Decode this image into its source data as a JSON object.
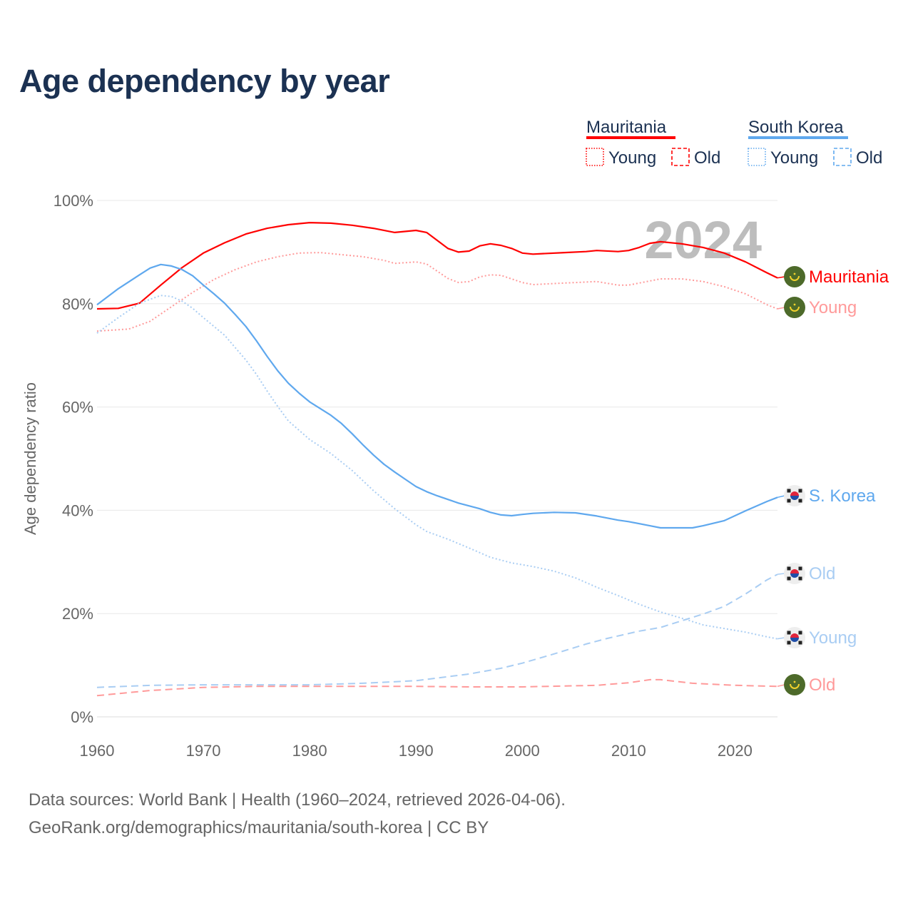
{
  "chart_data": {
    "type": "line",
    "title": "Age dependency by year",
    "xlabel": "",
    "ylabel": "Age dependency ratio",
    "xlim": [
      1960,
      2024
    ],
    "ylim": [
      0,
      100
    ],
    "x_ticks": [
      "1960",
      "1970",
      "1980",
      "1990",
      "2000",
      "2010",
      "2020"
    ],
    "y_ticks": [
      "0%",
      "20%",
      "40%",
      "60%",
      "80%",
      "100%"
    ],
    "grid": true,
    "year_watermark": "2024",
    "legend": {
      "placement": "top-right",
      "groups": [
        {
          "name": "Mauritania",
          "color": "#ff0000",
          "items": [
            "Young",
            "Old"
          ]
        },
        {
          "name": "South Korea",
          "color": "#5fa8ee",
          "items": [
            "Young",
            "Old"
          ]
        }
      ]
    },
    "series": [
      {
        "name": "Mauritania",
        "label": "Mauritania",
        "country": "mauritania",
        "color": "#ff0000",
        "style": "solid",
        "points": [
          [
            1960,
            79.0
          ],
          [
            1962,
            79.1
          ],
          [
            1964,
            80.1
          ],
          [
            1966,
            83.6
          ],
          [
            1968,
            87.0
          ],
          [
            1970,
            89.8
          ],
          [
            1972,
            91.8
          ],
          [
            1974,
            93.5
          ],
          [
            1976,
            94.6
          ],
          [
            1978,
            95.3
          ],
          [
            1980,
            95.7
          ],
          [
            1982,
            95.6
          ],
          [
            1984,
            95.2
          ],
          [
            1986,
            94.6
          ],
          [
            1988,
            93.8
          ],
          [
            1990,
            94.2
          ],
          [
            1991,
            93.8
          ],
          [
            1993,
            90.7
          ],
          [
            1994,
            90.0
          ],
          [
            1995,
            90.2
          ],
          [
            1996,
            91.2
          ],
          [
            1997,
            91.6
          ],
          [
            1998,
            91.3
          ],
          [
            1999,
            90.7
          ],
          [
            2000,
            89.8
          ],
          [
            2001,
            89.6
          ],
          [
            2004,
            89.9
          ],
          [
            2006,
            90.1
          ],
          [
            2007,
            90.3
          ],
          [
            2009,
            90.1
          ],
          [
            2010,
            90.3
          ],
          [
            2011,
            90.9
          ],
          [
            2012,
            91.7
          ],
          [
            2013,
            92.0
          ],
          [
            2015,
            91.6
          ],
          [
            2017,
            90.9
          ],
          [
            2019,
            89.8
          ],
          [
            2021,
            88.1
          ],
          [
            2023,
            86.0
          ],
          [
            2024,
            85.0
          ]
        ]
      },
      {
        "name": "Mauritania Young",
        "label": "Young",
        "country": "mauritania",
        "color": "#ff9a9a",
        "style": "dotted",
        "points": [
          [
            1960,
            74.7
          ],
          [
            1963,
            75.1
          ],
          [
            1965,
            76.6
          ],
          [
            1967,
            79.4
          ],
          [
            1969,
            82.2
          ],
          [
            1971,
            84.7
          ],
          [
            1973,
            86.6
          ],
          [
            1975,
            88.1
          ],
          [
            1977,
            89.1
          ],
          [
            1979,
            89.8
          ],
          [
            1981,
            89.9
          ],
          [
            1983,
            89.5
          ],
          [
            1985,
            89.1
          ],
          [
            1987,
            88.4
          ],
          [
            1988,
            87.8
          ],
          [
            1990,
            88.1
          ],
          [
            1991,
            87.7
          ],
          [
            1993,
            84.9
          ],
          [
            1994,
            84.1
          ],
          [
            1995,
            84.3
          ],
          [
            1996,
            85.2
          ],
          [
            1997,
            85.6
          ],
          [
            1998,
            85.5
          ],
          [
            2000,
            84.1
          ],
          [
            2001,
            83.7
          ],
          [
            2004,
            84.0
          ],
          [
            2007,
            84.3
          ],
          [
            2009,
            83.6
          ],
          [
            2010,
            83.6
          ],
          [
            2013,
            84.8
          ],
          [
            2015,
            84.8
          ],
          [
            2017,
            84.3
          ],
          [
            2019,
            83.3
          ],
          [
            2021,
            81.9
          ],
          [
            2023,
            79.8
          ],
          [
            2024,
            79.0
          ]
        ]
      },
      {
        "name": "South Korea",
        "label": "S. Korea",
        "country": "korea",
        "color": "#5fa8ee",
        "style": "solid",
        "points": [
          [
            1960,
            79.8
          ],
          [
            1962,
            82.9
          ],
          [
            1964,
            85.6
          ],
          [
            1965,
            86.9
          ],
          [
            1966,
            87.6
          ],
          [
            1967,
            87.3
          ],
          [
            1968,
            86.6
          ],
          [
            1969,
            85.4
          ],
          [
            1970,
            83.6
          ],
          [
            1971,
            81.9
          ],
          [
            1972,
            80.1
          ],
          [
            1973,
            77.9
          ],
          [
            1974,
            75.6
          ],
          [
            1975,
            72.8
          ],
          [
            1976,
            69.8
          ],
          [
            1977,
            67.0
          ],
          [
            1978,
            64.6
          ],
          [
            1979,
            62.7
          ],
          [
            1980,
            61.0
          ],
          [
            1981,
            59.7
          ],
          [
            1982,
            58.4
          ],
          [
            1983,
            56.8
          ],
          [
            1984,
            54.8
          ],
          [
            1985,
            52.7
          ],
          [
            1986,
            50.7
          ],
          [
            1987,
            48.9
          ],
          [
            1988,
            47.4
          ],
          [
            1989,
            46.0
          ],
          [
            1990,
            44.6
          ],
          [
            1991,
            43.6
          ],
          [
            1992,
            42.8
          ],
          [
            1994,
            41.4
          ],
          [
            1996,
            40.3
          ],
          [
            1997,
            39.6
          ],
          [
            1998,
            39.1
          ],
          [
            1999,
            38.95
          ],
          [
            2000,
            39.2
          ],
          [
            2001,
            39.4
          ],
          [
            2003,
            39.6
          ],
          [
            2005,
            39.5
          ],
          [
            2007,
            38.9
          ],
          [
            2009,
            38.1
          ],
          [
            2010,
            37.8
          ],
          [
            2012,
            37.0
          ],
          [
            2013,
            36.6
          ],
          [
            2016,
            36.6
          ],
          [
            2017,
            37.0
          ],
          [
            2019,
            38.0
          ],
          [
            2021,
            39.9
          ],
          [
            2023,
            41.7
          ],
          [
            2024,
            42.5
          ]
        ]
      },
      {
        "name": "South Korea Old",
        "label": "Old",
        "country": "korea",
        "color": "#a9cdf3",
        "style": "dashed",
        "points": [
          [
            1960,
            5.7
          ],
          [
            1965,
            6.1
          ],
          [
            1970,
            6.2
          ],
          [
            1975,
            6.2
          ],
          [
            1980,
            6.2
          ],
          [
            1985,
            6.5
          ],
          [
            1990,
            7.0
          ],
          [
            1995,
            8.3
          ],
          [
            1998,
            9.4
          ],
          [
            2000,
            10.4
          ],
          [
            2003,
            12.2
          ],
          [
            2006,
            14.1
          ],
          [
            2008,
            15.2
          ],
          [
            2011,
            16.6
          ],
          [
            2013,
            17.3
          ],
          [
            2015,
            18.6
          ],
          [
            2017,
            19.9
          ],
          [
            2019,
            21.4
          ],
          [
            2021,
            23.8
          ],
          [
            2023,
            26.5
          ],
          [
            2024,
            27.6
          ]
        ]
      },
      {
        "name": "South Korea Young",
        "label": "Young",
        "country": "korea",
        "color": "#a9cdf3",
        "style": "dotted",
        "points": [
          [
            1960,
            74.3
          ],
          [
            1962,
            77.3
          ],
          [
            1964,
            80.1
          ],
          [
            1966,
            81.6
          ],
          [
            1967,
            81.4
          ],
          [
            1968,
            80.5
          ],
          [
            1969,
            79.1
          ],
          [
            1970,
            77.3
          ],
          [
            1972,
            73.9
          ],
          [
            1974,
            69.1
          ],
          [
            1975,
            66.3
          ],
          [
            1976,
            63.1
          ],
          [
            1977,
            60.1
          ],
          [
            1978,
            57.3
          ],
          [
            1980,
            53.7
          ],
          [
            1982,
            51.0
          ],
          [
            1984,
            47.7
          ],
          [
            1986,
            43.8
          ],
          [
            1988,
            40.3
          ],
          [
            1990,
            37.2
          ],
          [
            1991,
            35.9
          ],
          [
            1993,
            34.4
          ],
          [
            1995,
            32.7
          ],
          [
            1997,
            30.9
          ],
          [
            1999,
            29.8
          ],
          [
            2001,
            29.1
          ],
          [
            2003,
            28.2
          ],
          [
            2005,
            26.9
          ],
          [
            2007,
            25.1
          ],
          [
            2009,
            23.5
          ],
          [
            2011,
            21.8
          ],
          [
            2013,
            20.3
          ],
          [
            2015,
            19.1
          ],
          [
            2017,
            17.8
          ],
          [
            2019,
            17.1
          ],
          [
            2021,
            16.4
          ],
          [
            2023,
            15.5
          ],
          [
            2024,
            15.1
          ]
        ]
      },
      {
        "name": "Mauritania Old",
        "label": "Old",
        "country": "mauritania",
        "color": "#ff9a9a",
        "style": "dashed",
        "points": [
          [
            1960,
            4.1
          ],
          [
            1965,
            5.1
          ],
          [
            1970,
            5.7
          ],
          [
            1975,
            5.9
          ],
          [
            1980,
            5.9
          ],
          [
            1990,
            5.9
          ],
          [
            1995,
            5.8
          ],
          [
            2000,
            5.8
          ],
          [
            2007,
            6.1
          ],
          [
            2010,
            6.6
          ],
          [
            2012,
            7.2
          ],
          [
            2013,
            7.2
          ],
          [
            2016,
            6.5
          ],
          [
            2020,
            6.1
          ],
          [
            2024,
            5.9
          ]
        ]
      }
    ]
  },
  "footer": {
    "line1": "Data sources: World Bank | Health (1960–2024, retrieved 2026-04-06).",
    "line2": "GeoRank.org/demographics/mauritania/south-korea | CC BY"
  }
}
